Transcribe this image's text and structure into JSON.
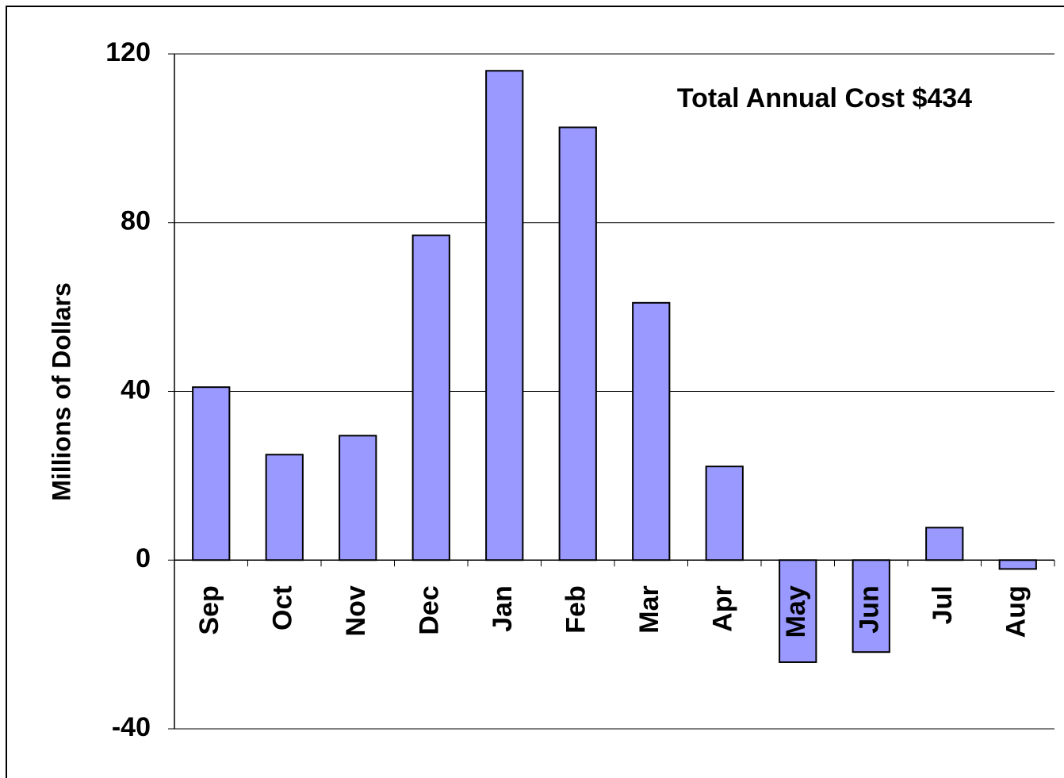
{
  "chart_data": {
    "type": "bar",
    "y_label": "Millions of Dollars",
    "annotation": "Total Annual Cost $434",
    "categories": [
      "Sep",
      "Oct",
      "Nov",
      "Dec",
      "Jan",
      "Feb",
      "Mar",
      "Apr",
      "May",
      "Jun",
      "Jul",
      "Aug"
    ],
    "values": [
      41,
      25,
      29.5,
      77,
      116,
      102.6,
      61,
      22.2,
      -24.2,
      -21.8,
      7.7,
      -2.1
    ],
    "color": "#9999ff",
    "ylim": [
      -40,
      120
    ],
    "yticks": [
      -40,
      0,
      40,
      80,
      120
    ],
    "grid": true
  }
}
